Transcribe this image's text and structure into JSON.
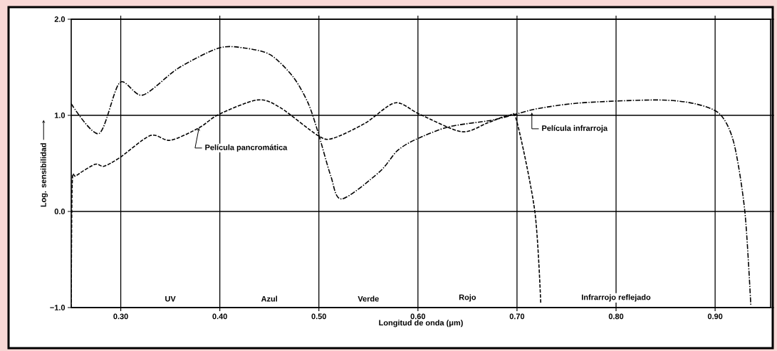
{
  "chart_data": {
    "type": "line",
    "xlabel": "Longitud de onda (μm)",
    "ylabel": "Log. sensibilidad",
    "xlim": [
      0.25,
      0.956
    ],
    "ylim": [
      -1.0,
      2.0
    ],
    "xticks": [
      {
        "value": 0.3,
        "label": "0.30"
      },
      {
        "value": 0.4,
        "label": "0.40"
      },
      {
        "value": 0.5,
        "label": "0.50"
      },
      {
        "value": 0.6,
        "label": "0.60"
      },
      {
        "value": 0.7,
        "label": "0.70"
      },
      {
        "value": 0.8,
        "label": "0.80"
      },
      {
        "value": 0.9,
        "label": "0.90"
      }
    ],
    "yticks": [
      {
        "value": -1.0,
        "label": "−1.0"
      },
      {
        "value": 0.0,
        "label": "0.0"
      },
      {
        "value": 1.0,
        "label": "1.0"
      },
      {
        "value": 2.0,
        "label": "2.0"
      }
    ],
    "grid": true,
    "legend": false,
    "marker": "none",
    "series": [
      {
        "name": "Película infrarroja",
        "color": "#000000",
        "line_style": "dashed",
        "x": [
          0.25,
          0.278,
          0.299,
          0.322,
          0.358,
          0.399,
          0.425,
          0.451,
          0.474,
          0.489,
          0.499,
          0.512,
          0.523,
          0.561,
          0.579,
          0.598,
          0.631,
          0.675,
          0.698,
          0.721,
          0.765,
          0.842,
          0.88,
          0.905,
          0.919,
          0.93,
          0.936
        ],
        "values": [
          1.12,
          0.81,
          1.34,
          1.21,
          1.49,
          1.7,
          1.7,
          1.63,
          1.4,
          1.13,
          0.83,
          0.37,
          0.13,
          0.41,
          0.63,
          0.75,
          0.88,
          0.95,
          1.01,
          1.07,
          1.13,
          1.16,
          1.12,
          1.01,
          0.71,
          0.0,
          -0.97
        ]
      },
      {
        "name": "Película pancromática",
        "color": "#000000",
        "line_style": "dashed",
        "x": [
          0.25,
          0.251,
          0.255,
          0.274,
          0.283,
          0.299,
          0.33,
          0.35,
          0.379,
          0.399,
          0.438,
          0.461,
          0.499,
          0.514,
          0.547,
          0.577,
          0.602,
          0.644,
          0.67,
          0.692,
          0.7,
          0.718,
          0.724
        ],
        "values": [
          -1.0,
          0.29,
          0.37,
          0.49,
          0.47,
          0.56,
          0.79,
          0.74,
          0.87,
          1.01,
          1.16,
          1.08,
          0.79,
          0.76,
          0.92,
          1.13,
          1.01,
          0.83,
          0.92,
          1.0,
          0.93,
          0.0,
          -0.96
        ]
      }
    ],
    "annotations": [
      "UV",
      "Azul",
      "Verde",
      "Rojo",
      "Infrarrojo reflejado"
    ]
  }
}
